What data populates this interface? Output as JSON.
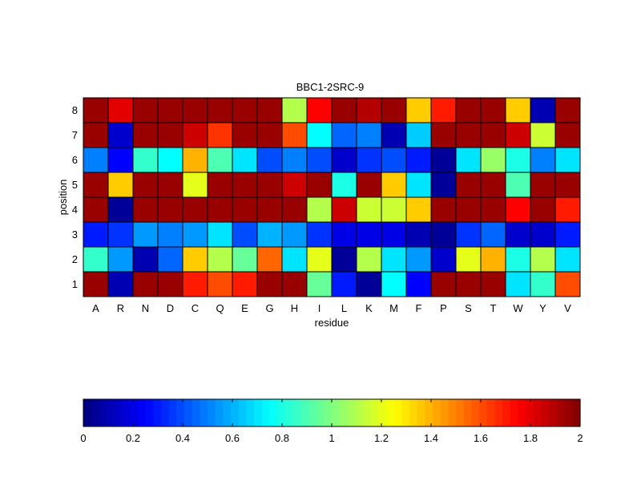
{
  "chart_data": {
    "type": "heatmap",
    "title": "BBC1-2SRC-9",
    "xlabel": "residue",
    "ylabel": "position",
    "x": [
      "A",
      "R",
      "N",
      "D",
      "C",
      "Q",
      "E",
      "G",
      "H",
      "I",
      "L",
      "K",
      "M",
      "F",
      "P",
      "S",
      "T",
      "W",
      "Y",
      "V"
    ],
    "y": [
      "8",
      "7",
      "6",
      "5",
      "4",
      "3",
      "2",
      "1"
    ],
    "values": [
      [
        1.95,
        1.8,
        1.95,
        1.95,
        1.95,
        1.95,
        1.95,
        1.95,
        1.1,
        1.75,
        1.95,
        1.9,
        1.95,
        1.35,
        1.7,
        1.95,
        1.95,
        1.35,
        0.1,
        1.95
      ],
      [
        1.95,
        0.15,
        1.95,
        1.95,
        1.85,
        1.65,
        1.95,
        1.95,
        1.6,
        0.75,
        0.45,
        0.5,
        0.1,
        0.65,
        1.95,
        1.95,
        1.95,
        1.85,
        1.15,
        1.95
      ],
      [
        0.5,
        0.25,
        0.85,
        0.75,
        1.4,
        0.9,
        0.7,
        0.4,
        0.5,
        0.4,
        0.15,
        0.35,
        0.4,
        0.3,
        0.05,
        0.7,
        1.05,
        0.8,
        0.5,
        0.7
      ],
      [
        1.95,
        1.35,
        1.95,
        1.95,
        1.2,
        1.95,
        1.95,
        1.95,
        1.85,
        1.95,
        0.8,
        1.95,
        1.35,
        0.7,
        0.05,
        1.95,
        1.95,
        0.9,
        1.95,
        1.95
      ],
      [
        1.95,
        0.05,
        1.95,
        1.95,
        1.95,
        1.95,
        1.95,
        1.95,
        1.95,
        1.1,
        1.85,
        1.15,
        1.15,
        1.35,
        1.95,
        1.95,
        1.95,
        1.75,
        1.95,
        1.7
      ],
      [
        0.3,
        0.35,
        0.55,
        0.5,
        0.55,
        0.7,
        0.4,
        0.6,
        0.55,
        0.35,
        0.2,
        0.2,
        0.2,
        0.1,
        0.05,
        0.35,
        0.45,
        0.15,
        0.15,
        0.3
      ],
      [
        0.85,
        0.55,
        0.1,
        0.45,
        1.35,
        1.1,
        0.95,
        1.55,
        0.7,
        1.2,
        0.05,
        1.1,
        0.7,
        0.55,
        0.15,
        1.2,
        1.4,
        0.8,
        1.1,
        0.7
      ],
      [
        1.95,
        0.1,
        1.95,
        1.95,
        1.7,
        1.6,
        1.7,
        1.95,
        1.95,
        0.95,
        0.3,
        0.05,
        0.75,
        0.25,
        1.95,
        1.95,
        1.95,
        0.7,
        0.85,
        1.6
      ]
    ],
    "colorbar": {
      "colormap": "jet",
      "range": [
        0,
        2
      ],
      "ticks": [
        "0",
        "0.2",
        "0.4",
        "0.6",
        "0.8",
        "1",
        "1.2",
        "1.4",
        "1.6",
        "1.8",
        "2"
      ],
      "steps": 64,
      "orientation": "horizontal"
    },
    "grid": true,
    "cell_border_color": "#000000"
  }
}
